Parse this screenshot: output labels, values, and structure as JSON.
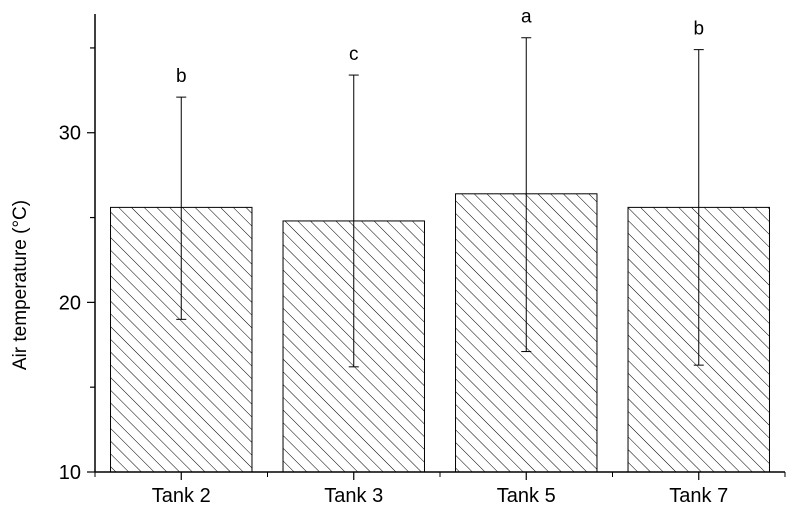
{
  "chart_data": {
    "type": "bar",
    "title": "",
    "xlabel": "",
    "ylabel": "Air temperature (°C)",
    "ylim": [
      10,
      37
    ],
    "yticks": [
      10,
      20,
      30
    ],
    "grid": false,
    "categories": [
      "Tank 2",
      "Tank 3",
      "Tank 5",
      "Tank 7"
    ],
    "values": [
      25.6,
      24.8,
      26.4,
      25.6
    ],
    "error_upper": [
      32.1,
      33.4,
      35.6,
      34.9
    ],
    "error_lower": [
      19.0,
      16.2,
      17.1,
      16.3
    ],
    "significance_letters": [
      "b",
      "c",
      "a",
      "b"
    ],
    "bar_fill": "hatched",
    "colors": {
      "bar_stroke": "#000000",
      "hatch": "#000000",
      "axis": "#000000"
    }
  }
}
